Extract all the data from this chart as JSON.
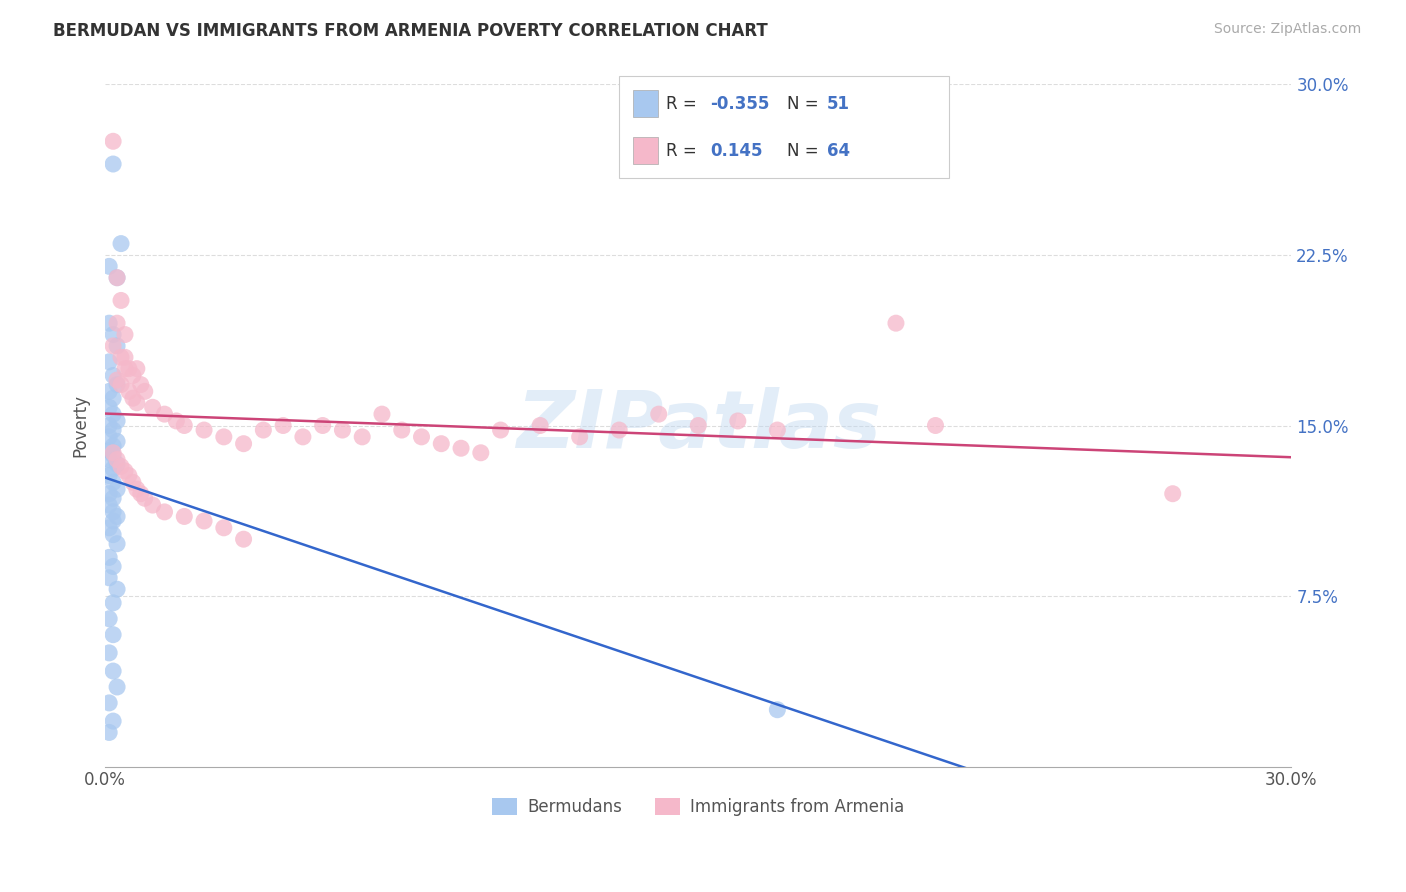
{
  "title": "BERMUDAN VS IMMIGRANTS FROM ARMENIA POVERTY CORRELATION CHART",
  "source": "Source: ZipAtlas.com",
  "ylabel": "Poverty",
  "x_min": 0.0,
  "x_max": 0.3,
  "y_min": 0.0,
  "y_max": 0.3,
  "yticks": [
    0.075,
    0.15,
    0.225,
    0.3
  ],
  "ytick_labels": [
    "7.5%",
    "15.0%",
    "22.5%",
    "30.0%"
  ],
  "legend_r_blue": "-0.355",
  "legend_n_blue": "51",
  "legend_r_pink": "0.145",
  "legend_n_pink": "64",
  "legend_label_blue": "Bermudans",
  "legend_label_pink": "Immigrants from Armenia",
  "blue_color": "#a8c8ef",
  "pink_color": "#f5b8ca",
  "line_blue_color": "#3366cc",
  "line_pink_color": "#cc4477",
  "watermark": "ZIPatlas",
  "title_color": "#333333",
  "source_color": "#aaaaaa",
  "axis_label_color": "#4472c4",
  "grid_color": "#dddddd",
  "background": "#ffffff",
  "blue_x": [
    0.002,
    0.004,
    0.001,
    0.003,
    0.001,
    0.002,
    0.003,
    0.001,
    0.002,
    0.003,
    0.001,
    0.002,
    0.001,
    0.002,
    0.003,
    0.001,
    0.002,
    0.001,
    0.003,
    0.002,
    0.001,
    0.002,
    0.001,
    0.003,
    0.002,
    0.001,
    0.002,
    0.003,
    0.001,
    0.002,
    0.001,
    0.002,
    0.003,
    0.002,
    0.001,
    0.002,
    0.003,
    0.001,
    0.002,
    0.001,
    0.003,
    0.002,
    0.001,
    0.002,
    0.001,
    0.002,
    0.003,
    0.001,
    0.17,
    0.002,
    0.001
  ],
  "blue_y": [
    0.265,
    0.23,
    0.22,
    0.215,
    0.195,
    0.19,
    0.185,
    0.178,
    0.172,
    0.168,
    0.165,
    0.162,
    0.158,
    0.155,
    0.152,
    0.15,
    0.148,
    0.145,
    0.143,
    0.141,
    0.139,
    0.137,
    0.135,
    0.133,
    0.131,
    0.128,
    0.125,
    0.122,
    0.12,
    0.118,
    0.115,
    0.112,
    0.11,
    0.108,
    0.105,
    0.102,
    0.098,
    0.092,
    0.088,
    0.083,
    0.078,
    0.072,
    0.065,
    0.058,
    0.05,
    0.042,
    0.035,
    0.028,
    0.025,
    0.02,
    0.015
  ],
  "pink_x": [
    0.002,
    0.003,
    0.004,
    0.003,
    0.005,
    0.002,
    0.004,
    0.005,
    0.003,
    0.004,
    0.006,
    0.007,
    0.005,
    0.006,
    0.008,
    0.007,
    0.009,
    0.01,
    0.008,
    0.012,
    0.015,
    0.018,
    0.02,
    0.025,
    0.03,
    0.035,
    0.04,
    0.045,
    0.05,
    0.055,
    0.06,
    0.065,
    0.07,
    0.075,
    0.08,
    0.085,
    0.09,
    0.095,
    0.1,
    0.11,
    0.12,
    0.13,
    0.14,
    0.15,
    0.16,
    0.17,
    0.002,
    0.003,
    0.004,
    0.005,
    0.006,
    0.007,
    0.008,
    0.009,
    0.01,
    0.012,
    0.015,
    0.02,
    0.025,
    0.03,
    0.2,
    0.21,
    0.27,
    0.035
  ],
  "pink_y": [
    0.275,
    0.215,
    0.205,
    0.195,
    0.19,
    0.185,
    0.18,
    0.175,
    0.17,
    0.168,
    0.165,
    0.162,
    0.18,
    0.175,
    0.175,
    0.172,
    0.168,
    0.165,
    0.16,
    0.158,
    0.155,
    0.152,
    0.15,
    0.148,
    0.145,
    0.142,
    0.148,
    0.15,
    0.145,
    0.15,
    0.148,
    0.145,
    0.155,
    0.148,
    0.145,
    0.142,
    0.14,
    0.138,
    0.148,
    0.15,
    0.145,
    0.148,
    0.155,
    0.15,
    0.152,
    0.148,
    0.138,
    0.135,
    0.132,
    0.13,
    0.128,
    0.125,
    0.122,
    0.12,
    0.118,
    0.115,
    0.112,
    0.11,
    0.108,
    0.105,
    0.195,
    0.15,
    0.12,
    0.1
  ]
}
